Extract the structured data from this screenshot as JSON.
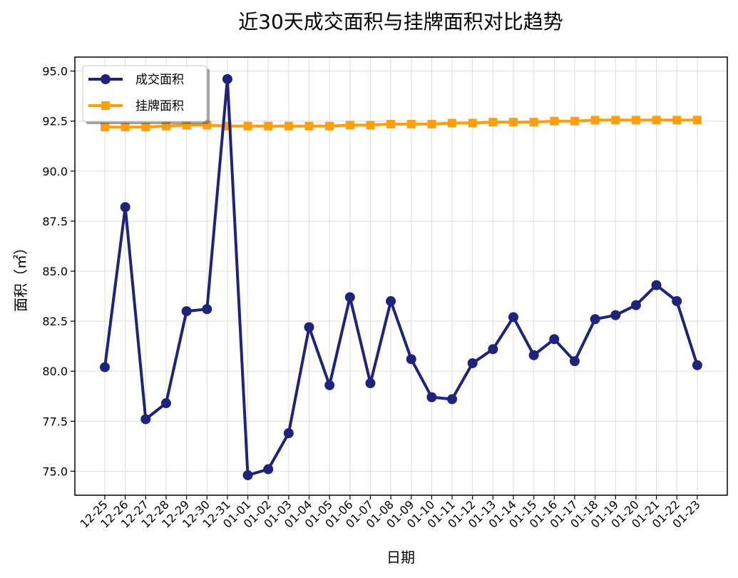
{
  "chart_data": {
    "type": "line",
    "title": "近30天成交面积与挂牌面积对比趋势",
    "xlabel": "日期",
    "ylabel": "面积（㎡）",
    "ylim": [
      73.8,
      95.7
    ],
    "yticks": [
      "75.0",
      "77.5",
      "80.0",
      "82.5",
      "85.0",
      "87.5",
      "90.0",
      "92.5",
      "95.0"
    ],
    "grid": true,
    "legend_position": "top-left",
    "categories": [
      "12-25",
      "12-26",
      "12-27",
      "12-28",
      "12-29",
      "12-30",
      "12-31",
      "01-01",
      "01-02",
      "01-03",
      "01-04",
      "01-05",
      "01-06",
      "01-07",
      "01-08",
      "01-09",
      "01-10",
      "01-11",
      "01-12",
      "01-13",
      "01-14",
      "01-15",
      "01-16",
      "01-17",
      "01-18",
      "01-19",
      "01-20",
      "01-21",
      "01-22",
      "01-23"
    ],
    "series": [
      {
        "name": "成交面积",
        "color": "#1f237a",
        "marker": "circle",
        "values": [
          80.2,
          88.2,
          77.6,
          78.4,
          83.0,
          83.1,
          94.6,
          74.8,
          75.1,
          76.9,
          82.2,
          79.3,
          83.7,
          79.4,
          83.5,
          80.6,
          78.7,
          78.6,
          80.4,
          81.1,
          82.7,
          80.8,
          81.6,
          80.5,
          82.6,
          82.8,
          83.3,
          84.3,
          83.5,
          80.3
        ]
      },
      {
        "name": "挂牌面积",
        "color": "#ff9f10",
        "marker": "square",
        "values": [
          92.2,
          92.2,
          92.2,
          92.25,
          92.3,
          92.3,
          92.25,
          92.25,
          92.25,
          92.25,
          92.25,
          92.25,
          92.3,
          92.3,
          92.35,
          92.35,
          92.35,
          92.4,
          92.4,
          92.45,
          92.45,
          92.45,
          92.5,
          92.5,
          92.55,
          92.55,
          92.55,
          92.55,
          92.55,
          92.55
        ]
      }
    ]
  }
}
